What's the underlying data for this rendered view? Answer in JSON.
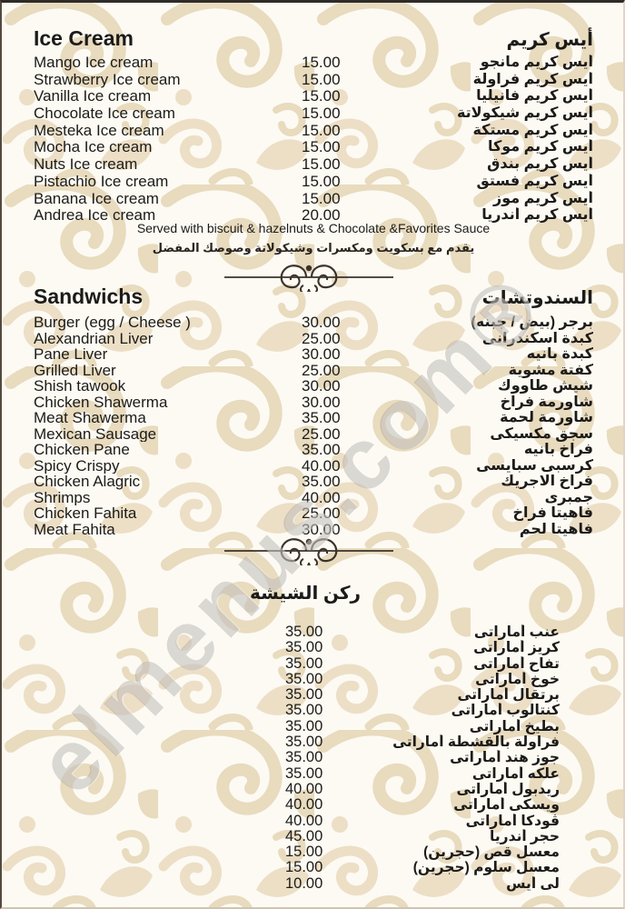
{
  "watermark": "elmenus.com®",
  "sections": {
    "ice_cream": {
      "title_en": "Ice Cream",
      "title_ar": "أيس كريم",
      "items": [
        {
          "en": "Mango Ice cream",
          "price": "15.00",
          "ar": "أيس كريم مانجو"
        },
        {
          "en": "Strawberry Ice cream",
          "price": "15.00",
          "ar": "أيس كريم فراولة"
        },
        {
          "en": "Vanilla Ice cream",
          "price": "15.00",
          "ar": "أيس كريم فانيليا"
        },
        {
          "en": "Chocolate Ice cream",
          "price": "15.00",
          "ar": "أيس كريم شيكولاتة"
        },
        {
          "en": "Mesteka Ice cream",
          "price": "15.00",
          "ar": "أيس كريم مستكة"
        },
        {
          "en": "Mocha Ice cream",
          "price": "15.00",
          "ar": "أيس كريم موكا"
        },
        {
          "en": "Nuts Ice cream",
          "price": "15.00",
          "ar": "أيس كريم بندق"
        },
        {
          "en": "Pistachio Ice cream",
          "price": "15.00",
          "ar": "أيس كريم فستق"
        },
        {
          "en": "Banana Ice cream",
          "price": "15.00",
          "ar": "أيس كريم موز"
        },
        {
          "en": "Andrea Ice cream",
          "price": "20.00",
          "ar": "أيس كريم أندريا"
        }
      ],
      "note_en": "Served with biscuit & hazelnuts & Chocolate &Favorites Sauce",
      "note_ar": "يقدم مع بسكويت ومكسرات وشيكولاتة وصوصك المفضل"
    },
    "sandwiches": {
      "title_en": "Sandwichs",
      "title_ar": "السندوتشات",
      "items": [
        {
          "en": "Burger (egg / Cheese )",
          "price": "30.00",
          "ar": "برجر (بيض / جبنه)"
        },
        {
          "en": "Alexandrian Liver",
          "price": "25.00",
          "ar": "كبدة اسكندرانى"
        },
        {
          "en": "Pane Liver",
          "price": "30.00",
          "ar": "كبدة بانيه"
        },
        {
          "en": "Grilled Liver",
          "price": "25.00",
          "ar": "كفتة مشوية"
        },
        {
          "en": "Shish tawook",
          "price": "30.00",
          "ar": "شيش طاووك"
        },
        {
          "en": "Chicken Shawerma",
          "price": "30.00",
          "ar": "شاورمة فراخ"
        },
        {
          "en": "Meat Shawerma",
          "price": "35.00",
          "ar": "شاورمة لحمة"
        },
        {
          "en": "Mexican Sausage",
          "price": "25.00",
          "ar": "سجق مكسيكى"
        },
        {
          "en": "Chicken Pane",
          "price": "35.00",
          "ar": "فراخ بانيه"
        },
        {
          "en": "Spicy Crispy",
          "price": "40.00",
          "ar": "كرسبى سبايسى"
        },
        {
          "en": "Chicken Alagric",
          "price": "35.00",
          "ar": "فراخ الاجريك"
        },
        {
          "en": "Shrimps",
          "price": "40.00",
          "ar": "جمبرى"
        },
        {
          "en": "Chicken Fahita",
          "price": "25.00",
          "ar": "فاهيتا فراخ"
        },
        {
          "en": "Meat Fahita",
          "price": "30.00",
          "ar": "فاهيتا لحم"
        }
      ]
    },
    "shisha": {
      "title_ar": "ركن الشيشة",
      "items": [
        {
          "price": "35.00",
          "ar": "عنب أماراتى"
        },
        {
          "price": "35.00",
          "ar": "كريز أماراتى"
        },
        {
          "price": "35.00",
          "ar": "تفاح أماراتى"
        },
        {
          "price": "35.00",
          "ar": "خوخ أماراتى"
        },
        {
          "price": "35.00",
          "ar": "برتقال أماراتى"
        },
        {
          "price": "35.00",
          "ar": "كنتالوب أماراتى"
        },
        {
          "price": "35.00",
          "ar": "بطيخ أماراتى"
        },
        {
          "price": "35.00",
          "ar": "فراولة بالقشطة أماراتى"
        },
        {
          "price": "35.00",
          "ar": "جوز هند أماراتى"
        },
        {
          "price": "35.00",
          "ar": "علكه أماراتى"
        },
        {
          "price": "40.00",
          "ar": "ريدبول أماراتى"
        },
        {
          "price": "40.00",
          "ar": "ويسكى أماراتى"
        },
        {
          "price": "40.00",
          "ar": "ڤودكا أماراتى"
        },
        {
          "price": "45.00",
          "ar": "حجر أندريا"
        },
        {
          "price": "15.00",
          "ar": "معسل قص (حجرين)"
        },
        {
          "price": "15.00",
          "ar": "معسل سلوم (حجرين)"
        },
        {
          "price": "10.00",
          "ar": "لى أيس"
        }
      ]
    }
  }
}
